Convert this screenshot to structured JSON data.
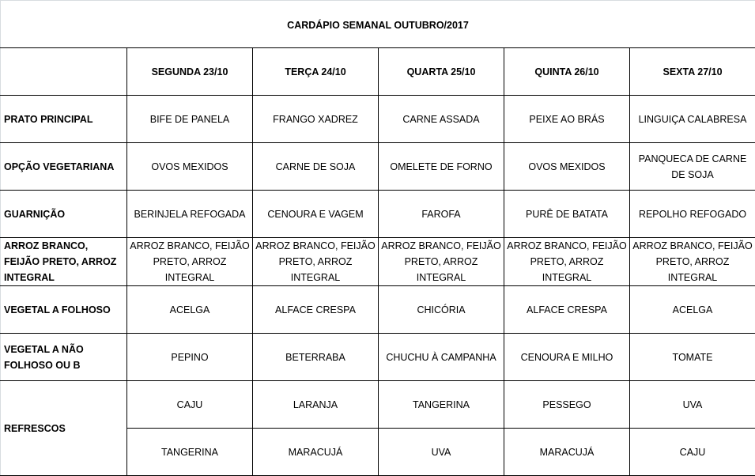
{
  "title": "CARDÁPIO SEMANAL OUTUBRO/2017",
  "days": [
    "SEGUNDA   23/10",
    "TERÇA 24/10",
    "QUARTA 25/10",
    "QUINTA 26/10",
    "SEXTA 27/10"
  ],
  "rows": [
    {
      "label": "PRATO PRINCIPAL",
      "cells": [
        "BIFE DE PANELA",
        "FRANGO XADREZ",
        "CARNE ASSADA",
        "PEIXE AO BRÁS",
        "LINGUIÇA CALABRESA"
      ]
    },
    {
      "label": "OPÇÃO VEGETARIANA",
      "cells": [
        "OVOS MEXIDOS",
        "CARNE DE SOJA",
        "OMELETE DE FORNO",
        "OVOS MEXIDOS",
        "PANQUECA DE CARNE DE SOJA"
      ]
    },
    {
      "label": "GUARNIÇÃO",
      "cells": [
        "BERINJELA REFOGADA",
        "CENOURA E VAGEM",
        "FAROFA",
        "PURÊ DE BATATA",
        "REPOLHO REFOGADO"
      ]
    },
    {
      "label": "ARROZ BRANCO, FEIJÃO PRETO, ARROZ INTEGRAL",
      "cells": [
        "ARROZ BRANCO, FEIJÃO PRETO, ARROZ INTEGRAL",
        "ARROZ BRANCO, FEIJÃO PRETO, ARROZ INTEGRAL",
        "ARROZ BRANCO, FEIJÃO PRETO, ARROZ INTEGRAL",
        "ARROZ BRANCO, FEIJÃO PRETO, ARROZ INTEGRAL",
        "ARROZ BRANCO, FEIJÃO PRETO, ARROZ INTEGRAL"
      ]
    },
    {
      "label": "VEGETAL A FOLHOSO",
      "cells": [
        "ACELGA",
        "ALFACE CRESPA",
        "CHICÓRIA",
        "ALFACE CRESPA",
        "ACELGA"
      ]
    },
    {
      "label": "VEGETAL A NÃO FOLHOSO OU B",
      "cells": [
        "PEPINO",
        "BETERRABA",
        "CHUCHU À CAMPANHA",
        "CENOURA E MILHO",
        "TOMATE"
      ]
    }
  ],
  "refrescos": {
    "label": "REFRESCOS",
    "row1": [
      "CAJU",
      "LARANJA",
      "TANGERINA",
      "PESSEGO",
      "UVA"
    ],
    "row2": [
      "TANGERINA",
      "MARACUJÁ",
      "UVA",
      "MARACUJÁ",
      "CAJU"
    ]
  }
}
